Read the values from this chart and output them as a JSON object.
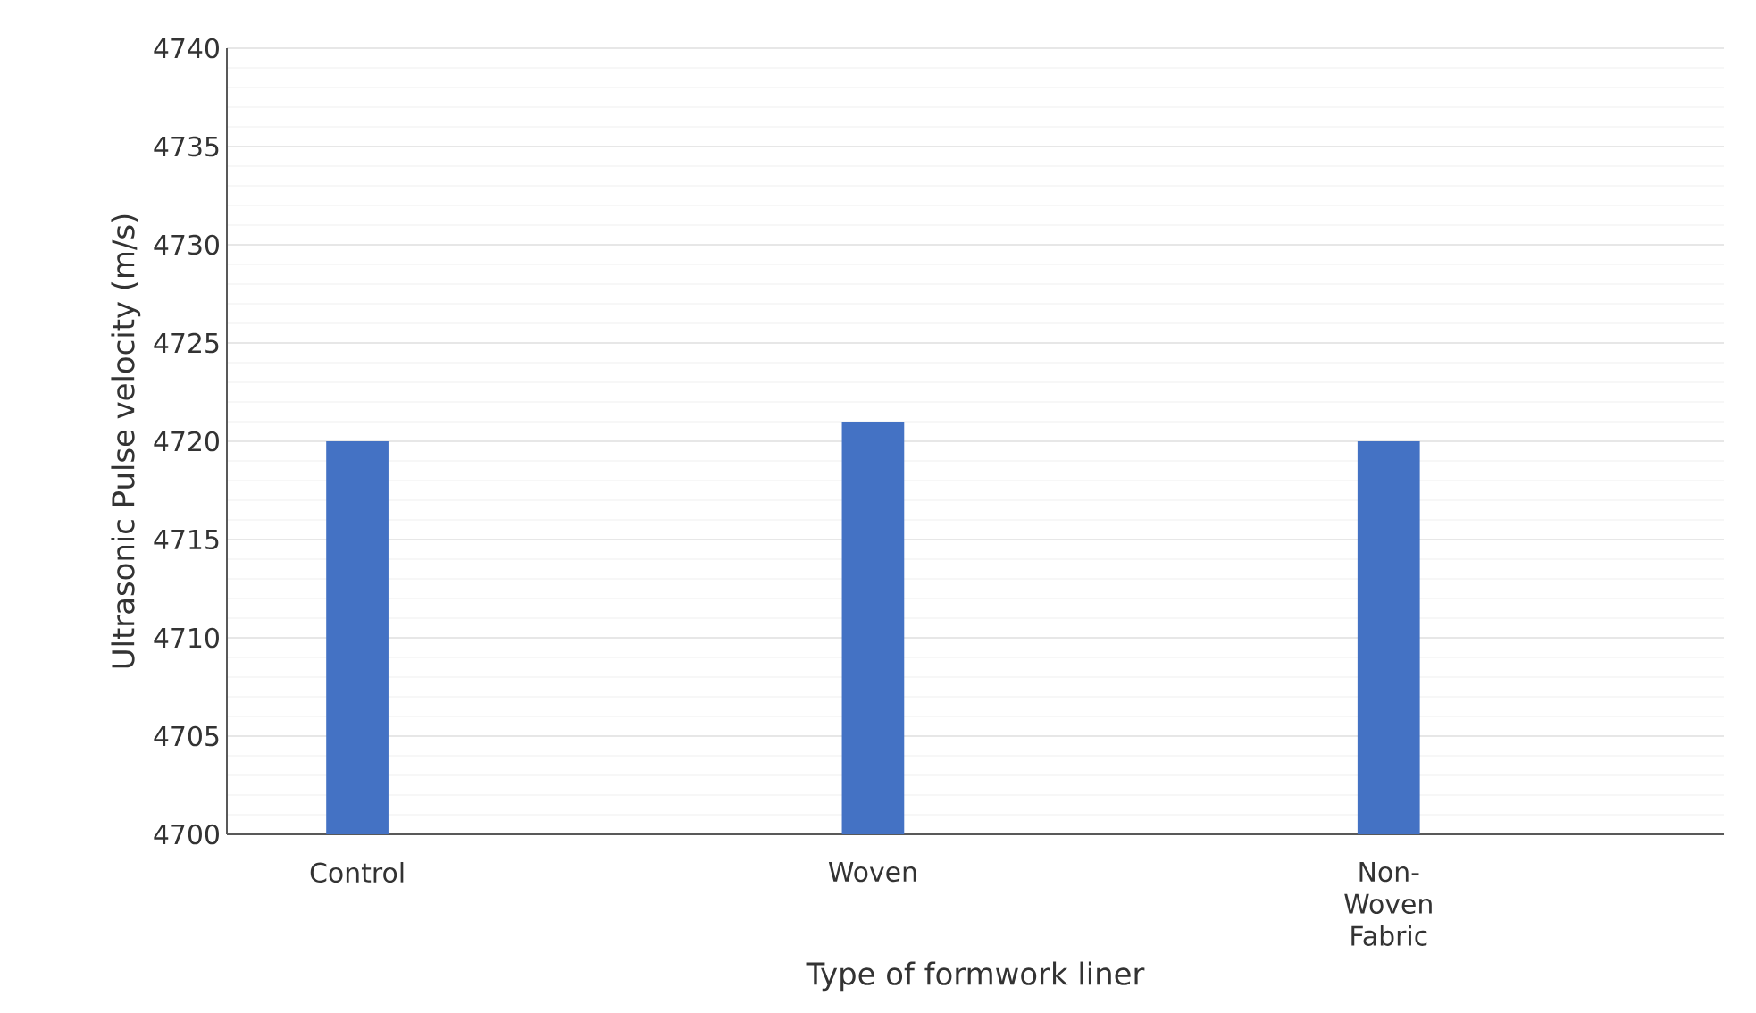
{
  "chart_data": {
    "type": "bar",
    "xlabel": "Type of formwork liner",
    "ylabel": "Ultrasonic Pulse velocity (m/s)",
    "categories": [
      "Control",
      "Woven",
      "Non-Woven Fabric"
    ],
    "values": [
      4720,
      4721,
      4720
    ],
    "color": "#4472c4",
    "ylim": [
      4700,
      4740
    ],
    "yticks": [
      4700,
      4705,
      4710,
      4715,
      4720,
      4725,
      4730,
      4735,
      4740
    ],
    "grid": "y"
  }
}
